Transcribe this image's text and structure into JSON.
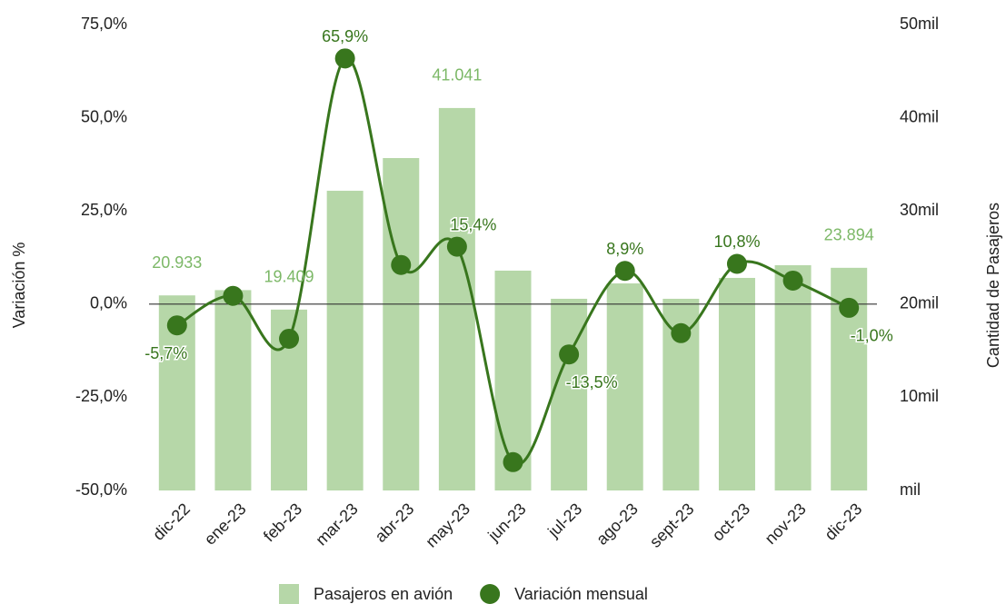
{
  "chart_data": {
    "type": "bar-line",
    "categories": [
      "dic-22",
      "ene-23",
      "feb-23",
      "mar-23",
      "abr-23",
      "may-23",
      "jun-23",
      "jul-23",
      "ago-23",
      "sept-23",
      "oct-23",
      "nov-23",
      "dic-23"
    ],
    "series": [
      {
        "name": "Pasajeros en avión",
        "type": "bar",
        "axis": "y2",
        "color": "#b6d7a8",
        "label_color": "#7cb867",
        "values": [
          20933,
          21500,
          19409,
          32160,
          35670,
          41041,
          23590,
          20570,
          22220,
          20570,
          22810,
          24170,
          23894
        ],
        "value_labels": [
          "20.933",
          null,
          "19.409",
          null,
          null,
          "41.041",
          null,
          null,
          null,
          null,
          null,
          null,
          "23.894"
        ]
      },
      {
        "name": "Variación mensual",
        "type": "line",
        "axis": "y",
        "color": "#38761d",
        "label_color": "#38761d",
        "values": [
          -5.7,
          2.2,
          -9.3,
          65.9,
          10.5,
          15.4,
          -42.4,
          -13.5,
          8.9,
          -7.8,
          10.8,
          6.3,
          -1.0
        ],
        "value_labels": [
          "-5,7%",
          null,
          null,
          "65,9%",
          null,
          "15,4%",
          null,
          "-13,5%",
          "8,9%",
          null,
          "10,8%",
          null,
          "-1,0%"
        ]
      }
    ],
    "ylabel": "Variación %",
    "y2label": "Cantidad de Pasajeros",
    "ylim": [
      -50,
      75
    ],
    "yticks": [
      {
        "value": -50,
        "label": "-50,0%"
      },
      {
        "value": -25,
        "label": "-25,0%"
      },
      {
        "value": 0,
        "label": "0,0%"
      },
      {
        "value": 25,
        "label": "25,0%"
      },
      {
        "value": 50,
        "label": "50,0%"
      },
      {
        "value": 75,
        "label": "75,0%"
      }
    ],
    "y2lim": [
      0,
      50000
    ],
    "y2ticks": [
      {
        "value": 0,
        "label": "mil"
      },
      {
        "value": 10000,
        "label": "10mil"
      },
      {
        "value": 20000,
        "label": "20mil"
      },
      {
        "value": 30000,
        "label": "30mil"
      },
      {
        "value": 40000,
        "label": "40mil"
      },
      {
        "value": 50000,
        "label": "50mil"
      }
    ],
    "legend": "bottom"
  }
}
